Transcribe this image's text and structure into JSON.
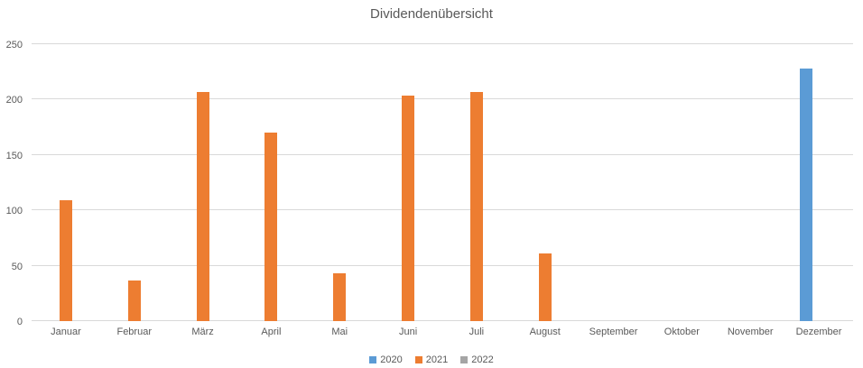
{
  "chart_data": {
    "type": "bar",
    "title": "Dividendenübersicht",
    "categories": [
      "Januar",
      "Februar",
      "März",
      "April",
      "Mai",
      "Juni",
      "Juli",
      "August",
      "September",
      "Oktober",
      "November",
      "Dezember"
    ],
    "series": [
      {
        "name": "2020",
        "color": "#5B9BD5",
        "values": [
          0,
          0,
          0,
          0,
          0,
          0,
          0,
          0,
          0,
          0,
          0,
          228
        ]
      },
      {
        "name": "2021",
        "color": "#ED7D31",
        "values": [
          109,
          37,
          207,
          170,
          43,
          204,
          207,
          61,
          0,
          0,
          0,
          0
        ]
      },
      {
        "name": "2022",
        "color": "#A5A5A5",
        "values": [
          0,
          0,
          0,
          0,
          0,
          0,
          0,
          0,
          0,
          0,
          0,
          0
        ]
      }
    ],
    "ylim": [
      0,
      250
    ],
    "yticks": [
      0,
      50,
      100,
      150,
      200,
      250
    ],
    "grid": true,
    "legend_position": "bottom",
    "xlabel": "",
    "ylabel": ""
  },
  "styles": {
    "text_color": "#595959",
    "gridline_color": "#D9D9D9",
    "background": "#FFFFFF"
  }
}
